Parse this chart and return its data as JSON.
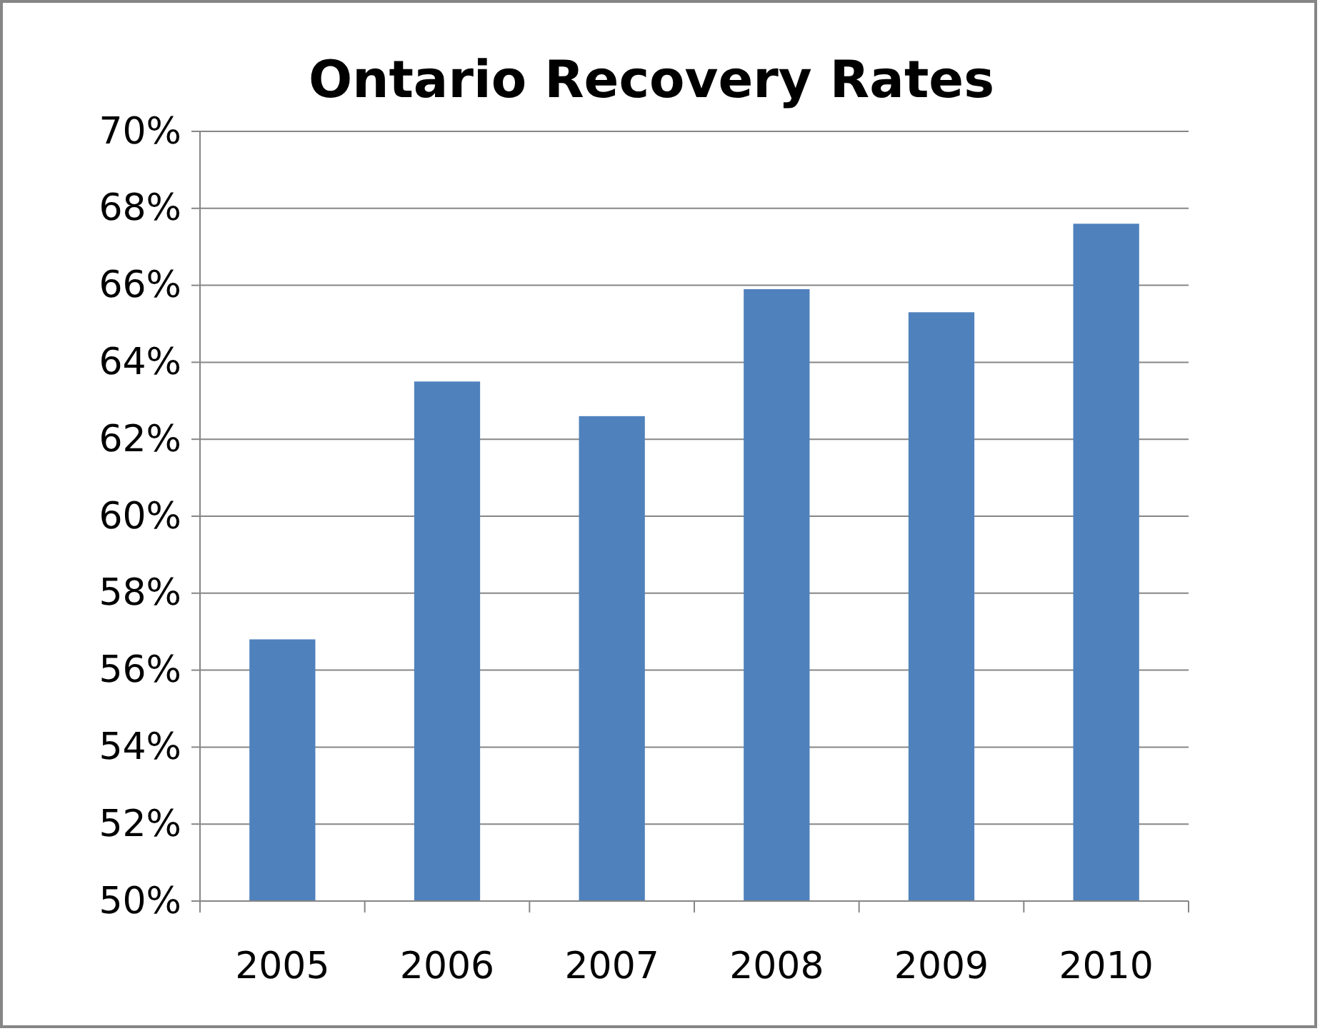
{
  "chart_data": {
    "type": "bar",
    "title": "Ontario Recovery Rates",
    "categories": [
      "2005",
      "2006",
      "2007",
      "2008",
      "2009",
      "2010"
    ],
    "values": [
      56.8,
      63.5,
      62.6,
      65.9,
      65.3,
      67.6
    ],
    "color": "#4f81bd",
    "ylim": [
      50,
      70
    ],
    "yticks": [
      {
        "value": 50,
        "label": "50%"
      },
      {
        "value": 52,
        "label": "52%"
      },
      {
        "value": 54,
        "label": "54%"
      },
      {
        "value": 56,
        "label": "56%"
      },
      {
        "value": 58,
        "label": "58%"
      },
      {
        "value": 60,
        "label": "60%"
      },
      {
        "value": 62,
        "label": "62%"
      },
      {
        "value": 64,
        "label": "64%"
      },
      {
        "value": 66,
        "label": "66%"
      },
      {
        "value": 68,
        "label": "68%"
      },
      {
        "value": 70,
        "label": "70%"
      }
    ],
    "grid": "y"
  }
}
